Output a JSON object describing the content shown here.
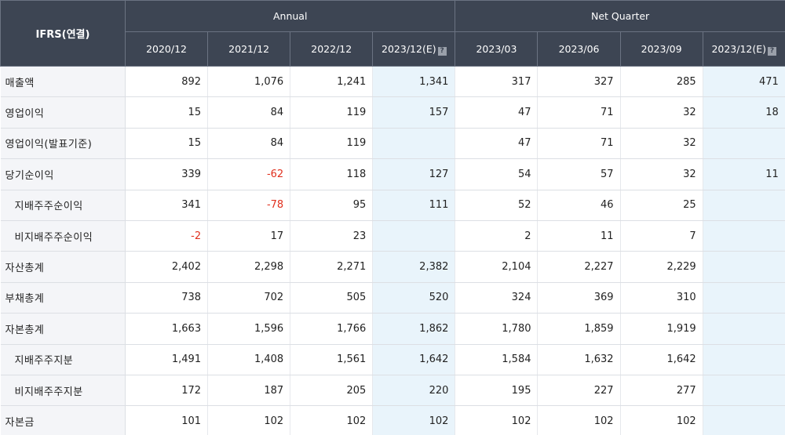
{
  "table": {
    "corner_label": "IFRS(연결)",
    "groups": {
      "annual": "Annual",
      "quarter": "Net Quarter"
    },
    "periods": [
      {
        "label": "2020/12",
        "estimate": false
      },
      {
        "label": "2021/12",
        "estimate": false
      },
      {
        "label": "2022/12",
        "estimate": false
      },
      {
        "label": "2023/12(E)",
        "estimate": true
      },
      {
        "label": "2023/03",
        "estimate": false
      },
      {
        "label": "2023/06",
        "estimate": false
      },
      {
        "label": "2023/09",
        "estimate": false
      },
      {
        "label": "2023/12(E)",
        "estimate": true
      }
    ],
    "estimate_icon_glyph": "?",
    "rows": [
      {
        "label": "매출액",
        "indent": false,
        "values": [
          "892",
          "1,076",
          "1,241",
          "1,341",
          "317",
          "327",
          "285",
          "471"
        ]
      },
      {
        "label": "영업이익",
        "indent": false,
        "values": [
          "15",
          "84",
          "119",
          "157",
          "47",
          "71",
          "32",
          "18"
        ]
      },
      {
        "label": "영업이익(발표기준)",
        "indent": false,
        "values": [
          "15",
          "84",
          "119",
          "",
          "47",
          "71",
          "32",
          ""
        ]
      },
      {
        "label": "당기순이익",
        "indent": false,
        "values": [
          "339",
          "-62",
          "118",
          "127",
          "54",
          "57",
          "32",
          "11"
        ]
      },
      {
        "label": "지배주주순이익",
        "indent": true,
        "values": [
          "341",
          "-78",
          "95",
          "111",
          "52",
          "46",
          "25",
          ""
        ]
      },
      {
        "label": "비지배주주순이익",
        "indent": true,
        "values": [
          "-2",
          "17",
          "23",
          "",
          "2",
          "11",
          "7",
          ""
        ]
      },
      {
        "label": "자산총계",
        "indent": false,
        "values": [
          "2,402",
          "2,298",
          "2,271",
          "2,382",
          "2,104",
          "2,227",
          "2,229",
          ""
        ]
      },
      {
        "label": "부채총계",
        "indent": false,
        "values": [
          "738",
          "702",
          "505",
          "520",
          "324",
          "369",
          "310",
          ""
        ]
      },
      {
        "label": "자본총계",
        "indent": false,
        "values": [
          "1,663",
          "1,596",
          "1,766",
          "1,862",
          "1,780",
          "1,859",
          "1,919",
          ""
        ]
      },
      {
        "label": "지배주주지분",
        "indent": true,
        "values": [
          "1,491",
          "1,408",
          "1,561",
          "1,642",
          "1,584",
          "1,632",
          "1,642",
          ""
        ]
      },
      {
        "label": "비지배주주지분",
        "indent": true,
        "values": [
          "172",
          "187",
          "205",
          "220",
          "195",
          "227",
          "277",
          ""
        ]
      },
      {
        "label": "자본금",
        "indent": false,
        "values": [
          "101",
          "102",
          "102",
          "102",
          "102",
          "102",
          "102",
          ""
        ]
      }
    ],
    "colors": {
      "header_bg": "#3d4553",
      "label_bg": "#f4f5f8",
      "estimate_bg": "#e9f4fb",
      "negative": "#e0301e"
    }
  }
}
